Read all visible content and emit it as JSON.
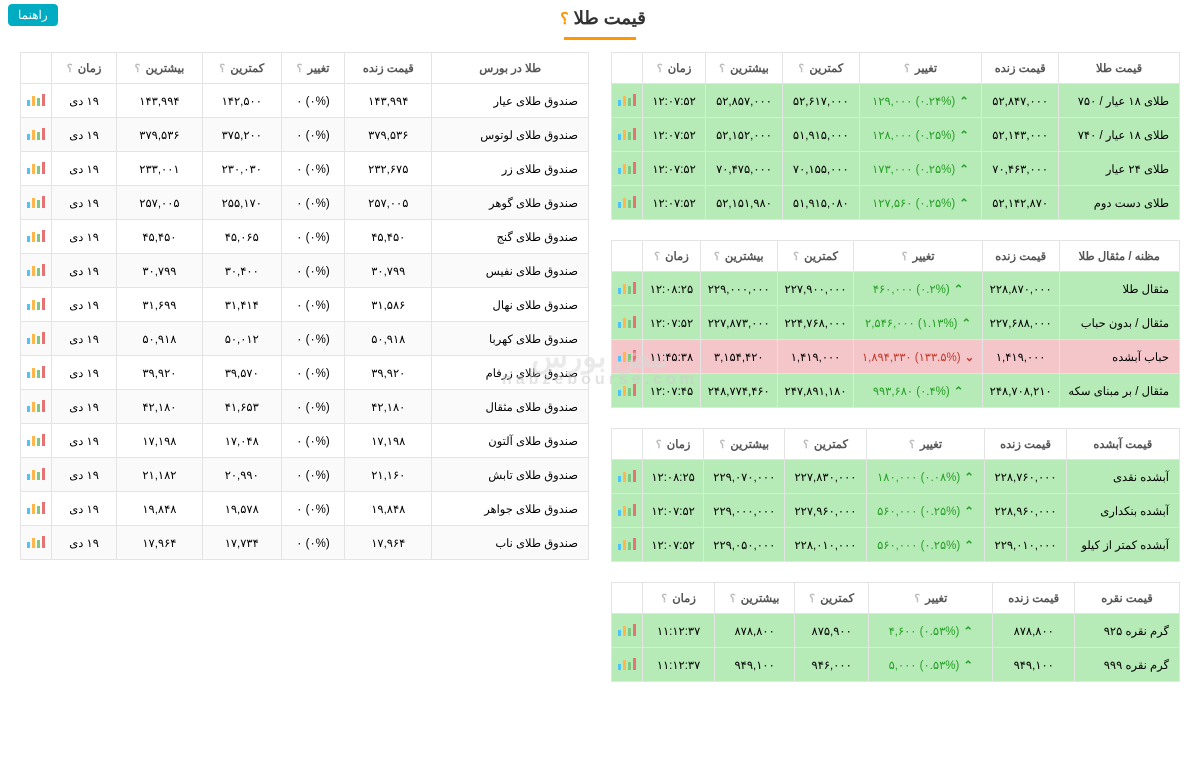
{
  "page_title": "قیمت طلا",
  "help_label": "راهنما",
  "watermark": "نبض بورس",
  "watermark_sub": "nabzebourse.com",
  "headers": {
    "name_gold": "قیمت طلا",
    "name_misqal": "مظنه / مثقال طلا",
    "name_abshode": "قیمت آبشده",
    "name_silver": "قیمت نقره",
    "name_bourse": "طلا در بورس",
    "price": "قیمت زنده",
    "change": "تغییر",
    "low": "کمترین",
    "high": "بیشترین",
    "time": "زمان"
  },
  "tables": {
    "gold": [
      {
        "name": "طلای ۱۸ عیار / ۷۵۰",
        "price": "۵۲,۸۴۷,۰۰۰",
        "change": "(۰.۲۴%) ۱۲۹,۰۰۰",
        "dir": "up",
        "low": "۵۲,۶۱۷,۰۰۰",
        "high": "۵۲,۸۵۷,۰۰۰",
        "time": "۱۲:۰۷:۵۲",
        "row": "green"
      },
      {
        "name": "طلای ۱۸ عیار / ۷۴۰",
        "price": "۵۲,۱۴۳,۰۰۰",
        "change": "(۰.۲۵%) ۱۲۸,۰۰۰",
        "dir": "up",
        "low": "۵۱,۹۱۵,۰۰۰",
        "high": "۵۲,۱۵۲,۰۰۰",
        "time": "۱۲:۰۷:۵۲",
        "row": "green"
      },
      {
        "name": "طلای ۲۴ عیار",
        "price": "۷۰,۴۶۳,۰۰۰",
        "change": "(۰.۲۵%) ۱۷۳,۰۰۰",
        "dir": "up",
        "low": "۷۰,۱۵۵,۰۰۰",
        "high": "۷۰,۴۷۵,۰۰۰",
        "time": "۱۲:۰۷:۵۲",
        "row": "green"
      },
      {
        "name": "طلای دست دوم",
        "price": "۵۲,۱۴۲,۸۷۰",
        "change": "(۰.۲۵%) ۱۲۷,۵۶۰",
        "dir": "up",
        "low": "۵۱,۹۱۵,۰۸۰",
        "high": "۵۲,۱۵۱,۹۸۰",
        "time": "۱۲:۰۷:۵۲",
        "row": "green"
      }
    ],
    "misqal": [
      {
        "name": "مثقال طلا",
        "price": "۲۲۸,۸۷۰,۰۰۰",
        "change": "(۰.۲%) ۴۶۰,۰۰۰",
        "dir": "up",
        "low": "۲۲۷,۹۰۰,۰۰۰",
        "high": "۲۲۹,۰۰۰,۰۰۰",
        "time": "۱۲:۰۸:۲۵",
        "row": "green"
      },
      {
        "name": "مثقال / بدون حباب",
        "price": "۲۲۷,۶۸۸,۰۰۰",
        "change": "(۱.۱۳%) ۲,۵۴۶,۰۰۰",
        "dir": "up",
        "low": "۲۲۴,۷۶۸,۰۰۰",
        "high": "۲۲۷,۸۷۳,۰۰۰",
        "time": "۱۲:۰۷:۵۲",
        "row": "green"
      },
      {
        "name": "حباب آبشده",
        "price": "۱,۴۱۹,۰۰۰",
        "change": "(۱۳۳.۵%) ۱,۸۹۴,۳۳۰",
        "dir": "down",
        "low": "۱,۴۱۹,۰۰۰",
        "high": "۳,۱۵۴,۴۲۰",
        "time": "۱۱:۴۵:۳۸",
        "row": "red"
      },
      {
        "name": "مثقال / بر مبنای سکه",
        "price": "۲۴۸,۷۰۸,۲۱۰",
        "change": "(۰.۴%) ۹۹۳,۶۸۰",
        "dir": "up",
        "low": "۲۴۷,۸۹۱,۱۸۰",
        "high": "۲۴۸,۷۷۴,۴۶۰",
        "time": "۱۲:۰۷:۴۵",
        "row": "green"
      }
    ],
    "abshode": [
      {
        "name": "آبشده نقدی",
        "price": "۲۲۸,۷۶۰,۰۰۰",
        "change": "(۰.۰۸%) ۱۸۰,۰۰۰",
        "dir": "up",
        "low": "۲۲۷,۸۳۰,۰۰۰",
        "high": "۲۲۹,۰۷۰,۰۰۰",
        "time": "۱۲:۰۸:۲۵",
        "row": "green"
      },
      {
        "name": "آبشده بنکداری",
        "price": "۲۲۸,۹۶۰,۰۰۰",
        "change": "(۰.۲۵%) ۵۶۰,۰۰۰",
        "dir": "up",
        "low": "۲۲۷,۹۶۰,۰۰۰",
        "high": "۲۲۹,۰۰۰,۰۰۰",
        "time": "۱۲:۰۷:۵۲",
        "row": "green"
      },
      {
        "name": "آبشده کمتر از کیلو",
        "price": "۲۲۹,۰۱۰,۰۰۰",
        "change": "(۰.۲۵%) ۵۶۰,۰۰۰",
        "dir": "up",
        "low": "۲۲۸,۰۱۰,۰۰۰",
        "high": "۲۲۹,۰۵۰,۰۰۰",
        "time": "۱۲:۰۷:۵۲",
        "row": "green"
      }
    ],
    "silver": [
      {
        "name": "گرم نقره ۹۲۵",
        "price": "۸۷۸,۸۰۰",
        "change": "(۰.۵۳%) ۴,۶۰۰",
        "dir": "up",
        "low": "۸۷۵,۹۰۰",
        "high": "۸۷۸,۸۰۰",
        "time": "۱۱:۱۲:۳۷",
        "row": "green"
      },
      {
        "name": "گرم نقره ۹۹۹",
        "price": "۹۴۹,۱۰۰",
        "change": "(۰.۵۳%) ۵,۰۰۰",
        "dir": "up",
        "low": "۹۴۶,۰۰۰",
        "high": "۹۴۹,۱۰۰",
        "time": "۱۱:۱۲:۳۷",
        "row": "green"
      }
    ],
    "bourse": [
      {
        "name": "صندوق طلای عیار",
        "price": "۱۴۳,۹۹۴",
        "change": "(۰%) ۰",
        "dir": "none",
        "low": "۱۴۲,۵۰۰",
        "high": "۱۴۳,۹۹۴",
        "time": "۱۹ دی",
        "row": "plain"
      },
      {
        "name": "صندوق طلای لوتوس",
        "price": "۳۷۹,۵۳۶",
        "change": "(۰%) ۰",
        "dir": "none",
        "low": "۳۷۵,۲۰۰",
        "high": "۳۷۹,۵۳۶",
        "time": "۱۹ دی",
        "row": "plain"
      },
      {
        "name": "صندوق طلای زر",
        "price": "۲۳۲,۶۷۵",
        "change": "(۰%) ۰",
        "dir": "none",
        "low": "۲۳۰,۰۳۰",
        "high": "۲۳۳,۰۰۱",
        "time": "۱۹ دی",
        "row": "plain"
      },
      {
        "name": "صندوق طلای گوهر",
        "price": "۲۵۷,۰۰۵",
        "change": "(۰%) ۰",
        "dir": "none",
        "low": "۲۵۵,۱۷۰",
        "high": "۲۵۷,۰۰۵",
        "time": "۱۹ دی",
        "row": "plain"
      },
      {
        "name": "صندوق طلای گنج",
        "price": "۴۵,۴۵۰",
        "change": "(۰%) ۰",
        "dir": "none",
        "low": "۴۵,۰۶۵",
        "high": "۴۵,۴۵۰",
        "time": "۱۹ دی",
        "row": "plain"
      },
      {
        "name": "صندوق طلای نفیس",
        "price": "۳۰,۷۹۹",
        "change": "(۰%) ۰",
        "dir": "none",
        "low": "۳۰,۴۰۰",
        "high": "۳۰,۷۹۹",
        "time": "۱۹ دی",
        "row": "plain"
      },
      {
        "name": "صندوق طلای نهال",
        "price": "۳۱,۵۸۶",
        "change": "(۰%) ۰",
        "dir": "none",
        "low": "۳۱,۴۱۴",
        "high": "۳۱,۶۹۹",
        "time": "۱۹ دی",
        "row": "plain"
      },
      {
        "name": "صندوق طلای کهربا",
        "price": "۵۰,۹۱۸",
        "change": "(۰%) ۰",
        "dir": "none",
        "low": "۵۰,۰۱۲",
        "high": "۵۰,۹۱۸",
        "time": "۱۹ دی",
        "row": "plain"
      },
      {
        "name": "صندوق طلای زرفام",
        "price": "۳۹,۹۲۰",
        "change": "(۰%) ۰",
        "dir": "none",
        "low": "۳۹,۵۷۰",
        "high": "۳۹,۹۲۰",
        "time": "۱۹ دی",
        "row": "plain"
      },
      {
        "name": "صندوق طلای مثقال",
        "price": "۴۲,۱۸۰",
        "change": "(۰%) ۰",
        "dir": "none",
        "low": "۴۱,۶۵۳",
        "high": "۴۲,۱۸۰",
        "time": "۱۹ دی",
        "row": "plain"
      },
      {
        "name": "صندوق طلای آلتون",
        "price": "۱۷,۱۹۸",
        "change": "(۰%) ۰",
        "dir": "none",
        "low": "۱۷,۰۴۸",
        "high": "۱۷,۱۹۸",
        "time": "۱۹ دی",
        "row": "plain"
      },
      {
        "name": "صندوق طلای تابش",
        "price": "۲۱,۱۶۰",
        "change": "(۰%) ۰",
        "dir": "none",
        "low": "۲۰,۹۹۰",
        "high": "۲۱,۱۸۲",
        "time": "۱۹ دی",
        "row": "plain"
      },
      {
        "name": "صندوق طلای جواهر",
        "price": "۱۹,۸۴۸",
        "change": "(۰%) ۰",
        "dir": "none",
        "low": "۱۹,۵۷۸",
        "high": "۱۹,۸۴۸",
        "time": "۱۹ دی",
        "row": "plain"
      },
      {
        "name": "صندوق طلای ناب",
        "price": "۱۷,۹۶۴",
        "change": "(۰%) ۰",
        "dir": "none",
        "low": "۱۷,۷۳۴",
        "high": "۱۷,۹۶۴",
        "time": "۱۹ دی",
        "row": "plain"
      }
    ]
  }
}
